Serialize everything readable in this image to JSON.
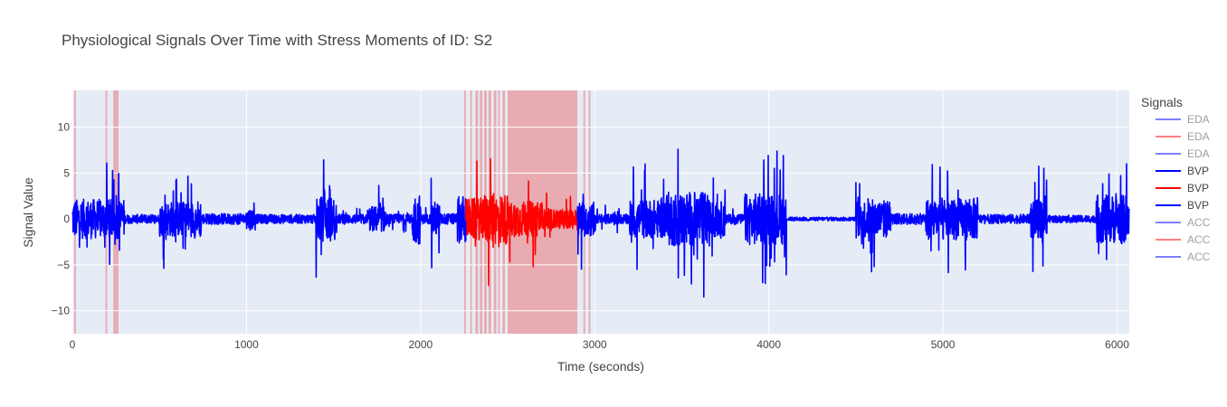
{
  "chart_data": {
    "type": "line",
    "title": "Physiological Signals Over Time with Stress Moments of ID: S2",
    "xlabel": "Time (seconds)",
    "ylabel": "Signal Value",
    "xlim": [
      0,
      6070
    ],
    "ylim": [
      -12.5,
      14
    ],
    "x_ticks": [
      0,
      1000,
      2000,
      3000,
      4000,
      5000,
      6000
    ],
    "x_tick_labels": [
      "0",
      "1000",
      "2000",
      "3000",
      "4000",
      "5000",
      "6000"
    ],
    "y_ticks": [
      -10,
      -5,
      0,
      5,
      10
    ],
    "y_tick_labels": [
      "−10",
      "−5",
      "0",
      "5",
      "10"
    ],
    "grid": true,
    "plot_bgcolor": "#E5ECF6",
    "legend": {
      "title": "Signals",
      "position": "right",
      "items": [
        {
          "label": "EDA",
          "color": "#0000ff",
          "faded": true
        },
        {
          "label": "EDA",
          "color": "#ff0000",
          "faded": true
        },
        {
          "label": "EDA",
          "color": "#0000ff",
          "faded": true
        },
        {
          "label": "BVP",
          "color": "#0000ff",
          "faded": false
        },
        {
          "label": "BVP",
          "color": "#ff0000",
          "faded": false
        },
        {
          "label": "BVP",
          "color": "#0000ff",
          "faded": false
        },
        {
          "label": "ACC",
          "color": "#0000ff",
          "faded": true
        },
        {
          "label": "ACC",
          "color": "#ff0000",
          "faded": true
        },
        {
          "label": "ACC",
          "color": "#0000ff",
          "faded": true
        }
      ]
    },
    "stress_color": "#e8959a",
    "stress_intervals": [
      [
        10,
        20
      ],
      [
        190,
        200
      ],
      [
        235,
        265
      ],
      [
        2250,
        2260
      ],
      [
        2285,
        2295
      ],
      [
        2315,
        2330
      ],
      [
        2340,
        2355
      ],
      [
        2365,
        2380
      ],
      [
        2390,
        2405
      ],
      [
        2420,
        2435
      ],
      [
        2445,
        2455
      ],
      [
        2470,
        2485
      ],
      [
        2500,
        2900
      ],
      [
        2935,
        2945
      ],
      [
        2965,
        2975
      ]
    ],
    "series": [
      {
        "name": "BVP",
        "color": "#0000ff",
        "x_range": [
          0,
          2260
        ],
        "activity": [
          [
            0,
            300,
            6.2
          ],
          [
            300,
            500,
            1.0
          ],
          [
            500,
            700,
            5.5
          ],
          [
            700,
            740,
            6.0
          ],
          [
            740,
            1000,
            1.2
          ],
          [
            1000,
            1050,
            3.5
          ],
          [
            1050,
            1400,
            1.0
          ],
          [
            1400,
            1510,
            7.0
          ],
          [
            1510,
            1700,
            1.5
          ],
          [
            1700,
            1800,
            4.0
          ],
          [
            1800,
            1950,
            1.5
          ],
          [
            1950,
            2000,
            8.0
          ],
          [
            2000,
            2060,
            1.5
          ],
          [
            2060,
            2110,
            5.5
          ],
          [
            2110,
            2210,
            1.2
          ],
          [
            2210,
            2260,
            7.5
          ]
        ]
      },
      {
        "name": "BVP",
        "color": "#ff0000",
        "x_range": [
          2260,
          2900
        ],
        "activity": [
          [
            2260,
            2360,
            6.5
          ],
          [
            2360,
            2500,
            8.0
          ],
          [
            2500,
            2700,
            5.5
          ],
          [
            2700,
            2900,
            3.0
          ]
        ]
      },
      {
        "name": "BVP",
        "color": "#0000ff",
        "x_range": [
          2900,
          6070
        ],
        "activity": [
          [
            2900,
            3000,
            5.5
          ],
          [
            3000,
            3200,
            1.5
          ],
          [
            3200,
            3400,
            6.0
          ],
          [
            3400,
            3650,
            8.5
          ],
          [
            3650,
            3750,
            5.5
          ],
          [
            3750,
            3860,
            1.5
          ],
          [
            3860,
            4100,
            8.0
          ],
          [
            4100,
            4500,
            0.4
          ],
          [
            4500,
            4700,
            6.0
          ],
          [
            4700,
            4900,
            1.2
          ],
          [
            4900,
            5200,
            6.5
          ],
          [
            5200,
            5500,
            1.0
          ],
          [
            5500,
            5600,
            6.0
          ],
          [
            5600,
            5880,
            0.8
          ],
          [
            5880,
            6070,
            7.5
          ]
        ]
      }
    ]
  }
}
